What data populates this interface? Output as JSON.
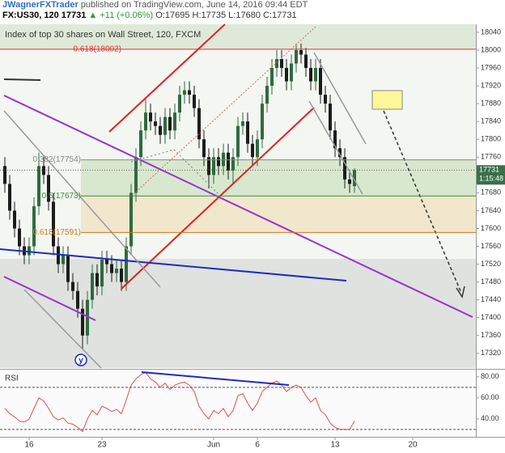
{
  "header": {
    "author": "JWagnerFXTrader",
    "published": "published on TradingView.com, June 14, 2016 09:44 EDT",
    "symbol": "FX:US30, 120",
    "price": "17731",
    "change": "▲ +11 (+0.06%)",
    "ohlc": "O:17695 H:17735 L:17680 C:17731"
  },
  "chart_data": [
    {
      "type": "candlestick",
      "title": "Index of top 30 shares on Wall Street, 120, FXCM",
      "up_color": "#2e6b3f",
      "down_color": "#1c1c1c",
      "x": [
        0,
        1,
        2,
        3,
        4,
        5,
        6,
        7,
        8,
        9,
        10,
        11,
        12,
        13,
        14,
        15,
        16,
        17,
        18,
        19,
        20,
        21,
        22,
        23,
        24,
        25,
        26,
        27,
        28,
        29,
        30,
        31,
        32,
        33,
        34,
        35,
        36,
        37,
        38,
        39,
        40,
        41,
        42,
        43,
        44,
        45,
        46,
        47,
        48,
        49,
        50,
        51,
        52,
        53,
        54,
        55,
        56,
        57,
        58,
        59,
        60,
        61,
        62,
        63,
        64,
        65,
        66,
        67,
        68,
        69,
        70,
        71,
        72
      ],
      "open": [
        17740,
        17700,
        17640,
        17600,
        17560,
        17540,
        17560,
        17650,
        17740,
        17720,
        17660,
        17560,
        17520,
        17540,
        17480,
        17460,
        17420,
        17360,
        17440,
        17500,
        17470,
        17530,
        17520,
        17500,
        17510,
        17480,
        17560,
        17680,
        17760,
        17820,
        17860,
        17840,
        17830,
        17810,
        17850,
        17820,
        17860,
        17900,
        17910,
        17900,
        17870,
        17800,
        17760,
        17720,
        17760,
        17740,
        17770,
        17730,
        17760,
        17830,
        17840,
        17790,
        17760,
        17800,
        17880,
        17920,
        17960,
        17980,
        17960,
        17930,
        17970,
        18000,
        17990,
        17960,
        17930,
        17960,
        17900,
        17880,
        17820,
        17780,
        17760,
        17710,
        17695
      ],
      "high": [
        17760,
        17720,
        17660,
        17620,
        17580,
        17580,
        17670,
        17770,
        17760,
        17740,
        17680,
        17580,
        17560,
        17560,
        17500,
        17480,
        17440,
        17460,
        17520,
        17520,
        17550,
        17550,
        17540,
        17530,
        17530,
        17580,
        17700,
        17780,
        17840,
        17890,
        17880,
        17860,
        17850,
        17870,
        17870,
        17880,
        17920,
        17930,
        17930,
        17920,
        17890,
        17820,
        17780,
        17780,
        17780,
        17790,
        17790,
        17780,
        17850,
        17860,
        17860,
        17810,
        17820,
        17900,
        17940,
        17980,
        18000,
        18000,
        17980,
        17990,
        18015,
        18015,
        18005,
        17980,
        17980,
        17980,
        17920,
        17900,
        17840,
        17800,
        17780,
        17730,
        17735
      ],
      "low": [
        17680,
        17620,
        17580,
        17540,
        17520,
        17520,
        17540,
        17630,
        17700,
        17640,
        17540,
        17500,
        17500,
        17460,
        17440,
        17400,
        17330,
        17340,
        17420,
        17450,
        17450,
        17500,
        17480,
        17480,
        17460,
        17460,
        17540,
        17660,
        17740,
        17800,
        17820,
        17810,
        17790,
        17790,
        17800,
        17800,
        17840,
        17880,
        17880,
        17850,
        17780,
        17740,
        17690,
        17700,
        17720,
        17720,
        17710,
        17700,
        17740,
        17810,
        17770,
        17740,
        17740,
        17780,
        17860,
        17900,
        17940,
        17940,
        17910,
        17910,
        17950,
        17970,
        17940,
        17910,
        17910,
        17880,
        17860,
        17800,
        17760,
        17740,
        17690,
        17680,
        17680
      ],
      "close": [
        17700,
        17640,
        17600,
        17560,
        17540,
        17560,
        17650,
        17740,
        17720,
        17660,
        17560,
        17520,
        17540,
        17480,
        17460,
        17420,
        17360,
        17440,
        17500,
        17470,
        17530,
        17520,
        17500,
        17510,
        17480,
        17560,
        17680,
        17760,
        17820,
        17860,
        17840,
        17830,
        17810,
        17850,
        17820,
        17860,
        17900,
        17910,
        17900,
        17870,
        17800,
        17760,
        17720,
        17760,
        17740,
        17770,
        17730,
        17760,
        17830,
        17840,
        17790,
        17760,
        17800,
        17880,
        17920,
        17960,
        17980,
        17960,
        17930,
        17970,
        18000,
        17990,
        17960,
        17930,
        17960,
        17900,
        17880,
        17820,
        17780,
        17760,
        17710,
        17700,
        17731
      ],
      "xlim": [
        -1,
        97
      ],
      "xticks": [
        {
          "value": 5,
          "label": "16"
        },
        {
          "value": 20,
          "label": "23"
        },
        {
          "value": 43,
          "label": "Jun"
        },
        {
          "value": 52,
          "label": "6"
        },
        {
          "value": 68,
          "label": "13"
        },
        {
          "value": 84,
          "label": "20"
        }
      ],
      "ylim": [
        17287,
        18058
      ],
      "yticks": [
        17320,
        17360,
        17400,
        17440,
        17480,
        17520,
        17560,
        17600,
        17640,
        17680,
        17720,
        17760,
        17800,
        17840,
        17880,
        17920,
        17960,
        18000,
        18040
      ],
      "fib_levels": [
        {
          "value": 18002,
          "label": "0.618(18002)"
        },
        {
          "value": 17754,
          "label": "0.382(17754)"
        },
        {
          "value": 17673,
          "label": "0.5(17673)"
        },
        {
          "value": 17591,
          "label": "0.618(17591)"
        }
      ],
      "fib_colors": [
        "#d33",
        "#888",
        "#3a8a3a",
        "#d07a1a"
      ],
      "countdown": "1:15:48",
      "wave_label": "y"
    },
    {
      "type": "line",
      "title": "RSI",
      "color": "#e05050",
      "values": [
        50,
        45,
        42,
        38,
        37,
        40,
        50,
        60,
        57,
        50,
        42,
        39,
        41,
        36,
        35,
        32,
        28,
        40,
        48,
        44,
        52,
        50,
        47,
        49,
        45,
        58,
        72,
        78,
        82,
        84,
        78,
        75,
        70,
        74,
        68,
        72,
        74,
        75,
        72,
        66,
        52,
        45,
        40,
        48,
        45,
        50,
        42,
        48,
        62,
        64,
        55,
        48,
        55,
        66,
        70,
        74,
        76,
        72,
        66,
        70,
        72,
        70,
        62,
        56,
        60,
        48,
        44,
        36,
        32,
        30,
        30,
        30,
        38
      ],
      "ylim": [
        23,
        86
      ],
      "yticks": [
        {
          "value": 40,
          "label": "40.00"
        },
        {
          "value": 60,
          "label": "60.00"
        },
        {
          "value": 80,
          "label": "80.00"
        }
      ],
      "levels": [
        30,
        70
      ]
    }
  ]
}
